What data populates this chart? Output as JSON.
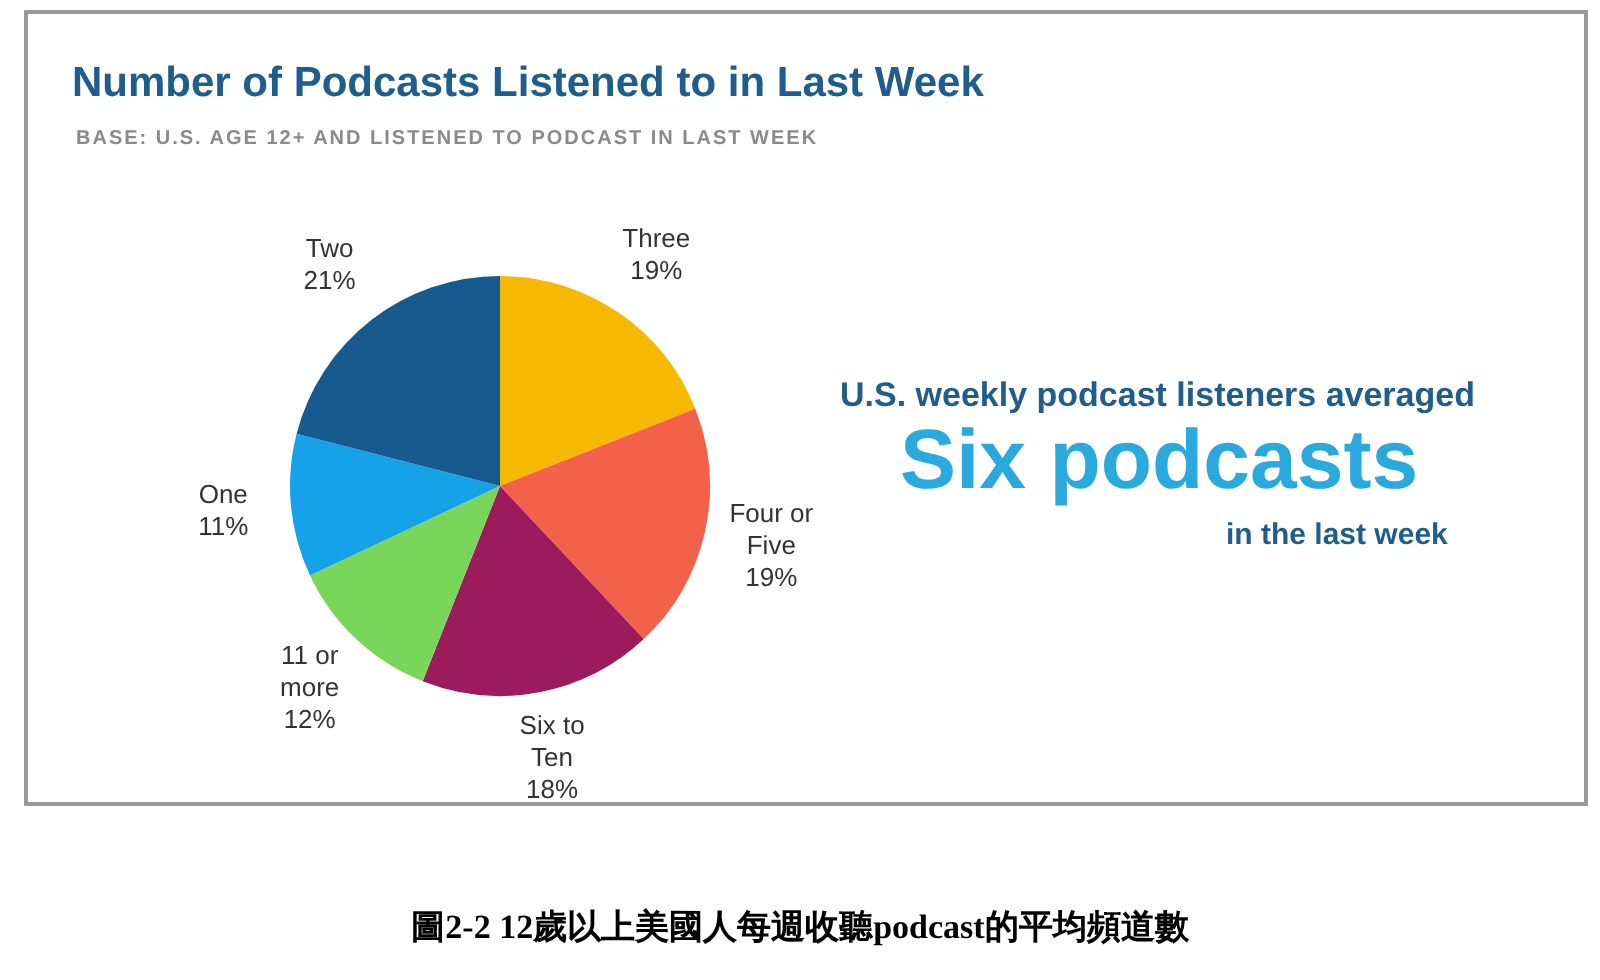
{
  "chart_data": {
    "type": "pie",
    "title": "Number of Podcasts Listened to in Last Week",
    "subtitle": "BASE: U.S. AGE 12+ AND LISTENED TO PODCAST IN LAST WEEK",
    "categories": [
      "Three",
      "Four or Five",
      "Six to Ten",
      "11 or more",
      "One",
      "Two"
    ],
    "values": [
      19,
      19,
      18,
      12,
      11,
      21
    ],
    "value_labels": [
      "19%",
      "19%",
      "18%",
      "12%",
      "11%",
      "21%"
    ],
    "colors": [
      "#f6b800",
      "#f4614b",
      "#9b1b5c",
      "#79d65b",
      "#15a2e8",
      "#175a8e"
    ],
    "legend": false,
    "annotations": [
      "U.S. weekly podcast listeners averaged",
      "Six podcasts",
      "in the last week",
      "圖2-2  12歲以上美國人每週收聽podcast的平均頻道數"
    ]
  }
}
